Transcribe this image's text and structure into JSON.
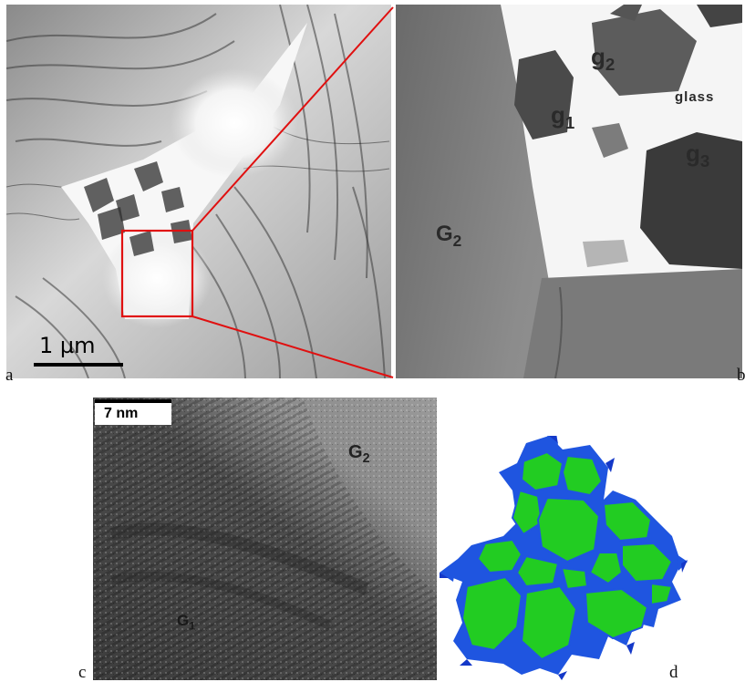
{
  "figure": {
    "panel_a": {
      "label": "a",
      "scale_bar_text": "1 µm",
      "inset_box_color": "#e01010"
    },
    "panel_b": {
      "label": "b",
      "grain_labels": [
        {
          "base": "g",
          "sub": "2"
        },
        {
          "base": "g",
          "sub": "1"
        },
        {
          "base": "g",
          "sub": "3"
        },
        {
          "base": "G",
          "sub": "2"
        }
      ],
      "glass_label": "glass"
    },
    "panel_c": {
      "label": "c",
      "scale_bar_text": "7 nm",
      "grain_labels": [
        {
          "base": "G",
          "sub": "2"
        },
        {
          "base": "G",
          "sub": "1"
        }
      ]
    },
    "panel_d": {
      "label": "d",
      "grain_fill_color": "#22cc22",
      "boundary_color": "#1f55e0"
    }
  }
}
